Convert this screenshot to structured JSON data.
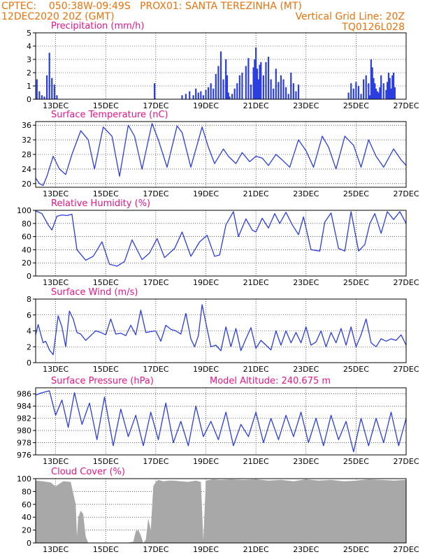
{
  "header": {
    "left_line1": "CPTEC:    050:38W-09:49S   PROX01: SANTA TEREZINHA (MT)",
    "left_line2": "12DEC2020 20Z (GMT)",
    "right_line2": "Vertical Grid Line: 20Z",
    "right_line3": "TQ0126L028"
  },
  "colors": {
    "line": "#2b3ee0",
    "bar": "#2b3ee0",
    "cloud": "#a8a8a8",
    "header": "#e8720c",
    "title": "#e0178a"
  },
  "chart_data": [
    {
      "type": "bar",
      "title": "Precipitation (mm/h)",
      "ylim": [
        0,
        5
      ],
      "yticks": [
        0,
        1,
        2,
        3,
        4,
        5
      ],
      "xlim": [
        12.2,
        27.0
      ],
      "xticks": [
        "13DEC",
        "15DEC",
        "17DEC",
        "19DEC",
        "21DEC",
        "23DEC",
        "25DEC",
        "27DEC"
      ],
      "grid": true,
      "x": [
        12.25,
        12.35,
        12.45,
        12.55,
        12.65,
        12.75,
        12.85,
        12.95,
        13.05,
        16.95,
        18.05,
        18.2,
        18.35,
        18.5,
        18.6,
        18.7,
        18.8,
        18.9,
        19.0,
        19.1,
        19.2,
        19.3,
        19.4,
        19.5,
        19.6,
        19.7,
        19.8,
        19.85,
        19.9,
        19.95,
        20.05,
        20.15,
        20.25,
        20.35,
        20.45,
        20.6,
        20.7,
        20.8,
        20.9,
        20.95,
        21.0,
        21.05,
        21.1,
        21.15,
        21.2,
        21.3,
        21.4,
        21.5,
        21.6,
        21.7,
        21.8,
        21.9,
        22.0,
        22.1,
        22.2,
        22.3,
        22.4,
        22.5,
        22.6,
        22.7,
        24.7,
        24.8,
        24.9,
        25.0,
        25.1,
        25.2,
        25.3,
        25.4,
        25.5,
        25.55,
        25.6,
        25.65,
        25.7,
        25.75,
        25.8,
        25.85,
        25.9,
        25.95,
        26.0,
        26.1,
        26.2,
        26.25,
        26.3,
        26.35,
        26.4,
        26.45,
        26.5,
        26.55
      ],
      "values": [
        1.5,
        0.6,
        0.3,
        0.2,
        1.8,
        3.5,
        1.6,
        1.1,
        0.3,
        1.2,
        0.3,
        0.4,
        0.6,
        0.3,
        0.8,
        0.5,
        0.6,
        0.3,
        0.7,
        0.9,
        1.2,
        0.8,
        1.9,
        2.5,
        3.6,
        1.5,
        3.0,
        1.8,
        0.5,
        0.2,
        0.4,
        0.8,
        1.2,
        1.8,
        2.0,
        2.5,
        3.1,
        1.1,
        2.4,
        3.0,
        3.9,
        2.3,
        1.5,
        2.6,
        2.8,
        1.8,
        2.8,
        3.2,
        1.5,
        0.8,
        2.3,
        1.3,
        1.8,
        1.5,
        0.9,
        0.4,
        2.0,
        1.2,
        0.6,
        1.1,
        0.5,
        1.2,
        0.8,
        1.3,
        1.0,
        0.4,
        1.5,
        1.8,
        1.2,
        0.3,
        3.0,
        2.4,
        1.6,
        1.2,
        0.8,
        0.6,
        0.5,
        0.9,
        1.8,
        1.2,
        0.7,
        1.3,
        2.0,
        1.6,
        0.8,
        1.8,
        2.0,
        0.9
      ]
    },
    {
      "type": "line",
      "title": "Surface Temperature (nC)",
      "ylim": [
        19,
        37
      ],
      "yticks": [
        20,
        24,
        28,
        32,
        36
      ],
      "xlim": [
        12.2,
        27.0
      ],
      "xticks": [
        "13DEC",
        "15DEC",
        "17DEC",
        "19DEC",
        "21DEC",
        "23DEC",
        "25DEC",
        "27DEC"
      ],
      "grid": true,
      "x": [
        12.2,
        12.35,
        12.5,
        12.65,
        12.9,
        13.15,
        13.4,
        13.65,
        14.0,
        14.3,
        14.55,
        14.9,
        15.25,
        15.55,
        15.9,
        16.15,
        16.45,
        16.85,
        17.1,
        17.45,
        17.85,
        18.05,
        18.4,
        18.85,
        19.1,
        19.35,
        19.7,
        19.9,
        20.2,
        20.45,
        20.75,
        21.0,
        21.25,
        21.5,
        21.8,
        22.05,
        22.35,
        22.7,
        23.0,
        23.3,
        23.65,
        23.9,
        24.2,
        24.55,
        24.9,
        25.2,
        25.5,
        25.8,
        26.1,
        26.5,
        26.8,
        27.0
      ],
      "values": [
        21.5,
        20,
        19.5,
        22,
        27.5,
        24,
        22.5,
        28,
        34.5,
        32,
        24,
        35.5,
        33,
        22,
        36,
        33,
        24,
        36.5,
        32,
        24.5,
        35.8,
        34,
        24.5,
        35.5,
        30,
        25.5,
        29.5,
        27.5,
        25.5,
        28.5,
        26,
        27.5,
        27,
        25,
        28,
        26.5,
        24.5,
        32,
        29,
        24.5,
        33,
        30,
        24,
        33,
        30.5,
        24.5,
        32,
        27.5,
        24.5,
        29.5,
        26.5,
        25
      ]
    },
    {
      "type": "line",
      "title": "Relative Humidity (%)",
      "ylim": [
        0,
        100
      ],
      "yticks": [
        0,
        20,
        40,
        60,
        80,
        100
      ],
      "xlim": [
        12.2,
        27.0
      ],
      "xticks": [
        "13DEC",
        "15DEC",
        "17DEC",
        "19DEC",
        "21DEC",
        "23DEC",
        "25DEC",
        "27DEC"
      ],
      "grid": true,
      "x": [
        12.2,
        12.45,
        12.7,
        12.85,
        13.05,
        13.25,
        13.45,
        13.65,
        13.85,
        14.2,
        14.5,
        14.85,
        15.15,
        15.45,
        15.75,
        16.05,
        16.45,
        16.75,
        17.05,
        17.35,
        17.75,
        18.05,
        18.4,
        18.75,
        19.05,
        19.35,
        19.55,
        19.8,
        20.1,
        20.3,
        20.6,
        20.85,
        21.0,
        21.25,
        21.5,
        21.75,
        21.95,
        22.2,
        22.45,
        22.7,
        22.9,
        23.2,
        23.55,
        23.75,
        24.0,
        24.3,
        24.55,
        24.8,
        25.1,
        25.35,
        25.55,
        25.75,
        26.0,
        26.25,
        26.5,
        26.75,
        27.0
      ],
      "values": [
        99,
        95,
        78,
        70,
        91,
        93,
        92,
        94,
        40,
        24,
        30,
        52,
        18,
        15,
        22,
        55,
        25,
        35,
        57,
        28,
        42,
        67,
        30,
        52,
        62,
        30,
        32,
        78,
        98,
        60,
        87,
        70,
        67,
        88,
        73,
        95,
        80,
        97,
        78,
        63,
        90,
        40,
        38,
        82,
        96,
        42,
        38,
        98,
        38,
        48,
        80,
        95,
        65,
        98,
        86,
        98,
        80
      ]
    },
    {
      "type": "line",
      "title": "Surface Wind (m/s)",
      "ylim": [
        0,
        8
      ],
      "yticks": [
        0,
        2,
        4,
        6,
        8
      ],
      "xlim": [
        12.2,
        27.0
      ],
      "xticks": [
        "13DEC",
        "15DEC",
        "17DEC",
        "19DEC",
        "21DEC",
        "23DEC",
        "25DEC",
        "27DEC"
      ],
      "grid": true,
      "x": [
        12.2,
        12.3,
        12.5,
        12.6,
        12.75,
        12.9,
        13.1,
        13.25,
        13.4,
        13.55,
        13.7,
        13.85,
        14.0,
        14.2,
        14.4,
        14.6,
        14.8,
        15.0,
        15.2,
        15.4,
        15.6,
        15.8,
        16.0,
        16.2,
        16.4,
        16.6,
        16.8,
        17.0,
        17.2,
        17.4,
        17.6,
        17.8,
        18.0,
        18.2,
        18.4,
        18.55,
        18.7,
        18.85,
        19.0,
        19.2,
        19.4,
        19.6,
        19.8,
        20.0,
        20.2,
        20.4,
        20.6,
        20.8,
        21.0,
        21.2,
        21.4,
        21.6,
        21.8,
        22.0,
        22.2,
        22.4,
        22.6,
        22.8,
        23.0,
        23.2,
        23.4,
        23.6,
        23.8,
        24.0,
        24.2,
        24.4,
        24.6,
        24.8,
        25.0,
        25.2,
        25.4,
        25.6,
        25.8,
        26.0,
        26.2,
        26.4,
        26.6,
        26.8,
        27.0
      ],
      "values": [
        3.5,
        4.8,
        2.5,
        2.7,
        1.6,
        1.0,
        5.9,
        4.5,
        2.0,
        6.5,
        5.5,
        3.8,
        3.6,
        2.8,
        3.4,
        4.0,
        3.8,
        3.5,
        5.5,
        3.6,
        3.7,
        3.4,
        4.7,
        3.5,
        6.6,
        3.8,
        3.9,
        4.0,
        2.7,
        4.7,
        4.2,
        4.0,
        3.6,
        6.2,
        3.0,
        2.0,
        3.4,
        7.3,
        5.0,
        2.0,
        2.2,
        1.5,
        4.5,
        2.0,
        4.3,
        1.5,
        3.0,
        4.4,
        1.8,
        2.8,
        2.2,
        1.6,
        4.0,
        2.2,
        4.0,
        2.5,
        3.8,
        2.5,
        4.5,
        2.2,
        2.6,
        4.0,
        2.0,
        3.8,
        2.5,
        4.3,
        2.2,
        4.5,
        2.0,
        3.5,
        5.5,
        2.5,
        2.0,
        3.0,
        2.7,
        3.0,
        2.8,
        3.5,
        2.2
      ]
    },
    {
      "type": "line",
      "title": "Surface Pressure (hPa)",
      "subtitle": "Model Altitude: 240.675 m",
      "ylim": [
        976,
        987
      ],
      "yticks": [
        976,
        978,
        980,
        982,
        984,
        986
      ],
      "xlim": [
        12.2,
        27.0
      ],
      "xticks": [
        "13DEC",
        "15DEC",
        "17DEC",
        "19DEC",
        "21DEC",
        "23DEC",
        "25DEC",
        "27DEC"
      ],
      "grid": true,
      "x": [
        12.2,
        12.45,
        12.75,
        13.0,
        13.25,
        13.5,
        13.75,
        14.05,
        14.35,
        14.65,
        14.95,
        15.3,
        15.6,
        15.9,
        16.2,
        16.5,
        16.8,
        17.1,
        17.4,
        17.7,
        18.0,
        18.3,
        18.6,
        18.9,
        19.2,
        19.5,
        19.8,
        20.1,
        20.4,
        20.7,
        21.0,
        21.3,
        21.6,
        21.9,
        22.2,
        22.5,
        22.8,
        23.1,
        23.4,
        23.7,
        24.0,
        24.3,
        24.6,
        24.9,
        25.2,
        25.5,
        25.8,
        26.1,
        26.4,
        26.7,
        27.0
      ],
      "values": [
        985.8,
        986.2,
        986.5,
        982.5,
        985.0,
        980.5,
        986.2,
        981.0,
        984.5,
        978.5,
        985.5,
        977.5,
        983.5,
        979.0,
        982.5,
        977.5,
        983.0,
        978.5,
        984.5,
        978.0,
        981.5,
        977.5,
        984.0,
        979.0,
        981.5,
        978.5,
        983.0,
        977.5,
        981.0,
        979.0,
        983.0,
        978.0,
        982.0,
        978.5,
        982.5,
        979.0,
        983.0,
        978.0,
        982.0,
        977.5,
        982.5,
        978.5,
        981.5,
        976.5,
        982.0,
        977.5,
        982.0,
        978.0,
        983.0,
        977.5,
        982.0
      ]
    },
    {
      "type": "area",
      "title": "Cloud Cover (%)",
      "ylim": [
        0,
        100
      ],
      "yticks": [
        0,
        20,
        40,
        60,
        80,
        100
      ],
      "xlim": [
        12.2,
        27.0
      ],
      "xticks": [
        "13DEC",
        "15DEC",
        "17DEC",
        "19DEC",
        "21DEC",
        "23DEC",
        "25DEC",
        "27DEC"
      ],
      "grid": true,
      "x": [
        12.2,
        12.5,
        12.8,
        13.0,
        13.3,
        13.6,
        13.8,
        13.85,
        13.9,
        14.0,
        14.1,
        14.2,
        14.3,
        14.5,
        14.7,
        15.0,
        15.4,
        15.8,
        16.1,
        16.2,
        16.3,
        16.4,
        16.5,
        16.6,
        16.7,
        16.8,
        16.9,
        17.0,
        17.1,
        17.3,
        17.5,
        17.7,
        18.0,
        18.3,
        18.6,
        18.8,
        18.9,
        19.0,
        19.3,
        19.6,
        20.0,
        20.5,
        21.0,
        21.5,
        22.0,
        22.5,
        23.0,
        23.5,
        24.0,
        24.5,
        25.0,
        25.5,
        26.0,
        26.5,
        27.0
      ],
      "values": [
        97,
        96,
        94,
        88,
        96,
        95,
        60,
        10,
        40,
        50,
        45,
        10,
        0,
        0,
        0,
        0,
        0,
        0,
        2,
        18,
        20,
        12,
        0,
        5,
        38,
        20,
        88,
        95,
        98,
        96,
        97,
        97,
        96,
        95,
        97,
        95,
        5,
        97,
        99,
        98,
        99,
        98,
        99,
        97,
        98,
        96,
        99,
        97,
        98,
        96,
        97,
        99,
        98,
        97,
        98
      ]
    }
  ]
}
